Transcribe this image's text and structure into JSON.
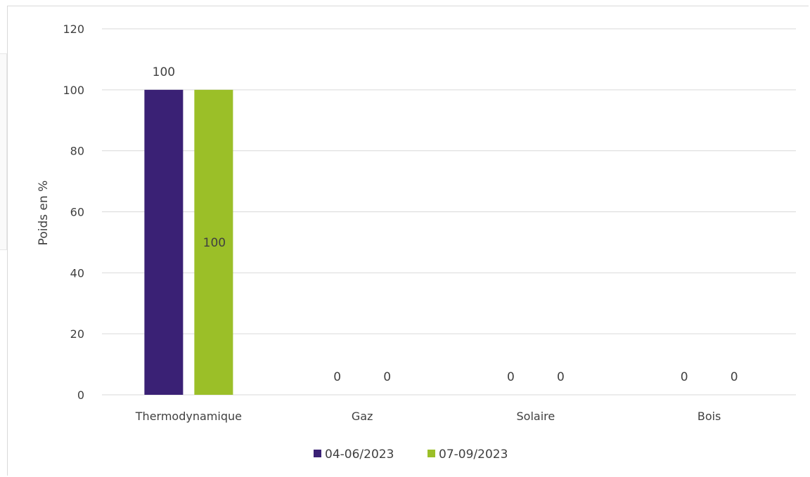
{
  "colors": {
    "series_1": "#3a2175",
    "series_2": "#9bbf28",
    "grid": "#d9d9d9",
    "text": "#404040"
  },
  "chart_data": {
    "type": "bar",
    "categories": [
      "Thermodynamique",
      "Gaz",
      "Solaire",
      "Bois"
    ],
    "series": [
      {
        "name": "04-06/2023",
        "values": [
          100,
          0,
          0,
          0
        ]
      },
      {
        "name": "07-09/2023",
        "values": [
          100,
          0,
          0,
          0
        ]
      }
    ],
    "ylabel": "Poids en %",
    "xlabel": "",
    "ylim": [
      0,
      120
    ],
    "yticks": [
      0,
      20,
      40,
      60,
      80,
      100,
      120
    ],
    "grid": true,
    "legend_position": "bottom",
    "data_labels": [
      [
        "100",
        "0",
        "0",
        "0"
      ],
      [
        "100",
        "0",
        "0",
        "0"
      ]
    ]
  }
}
